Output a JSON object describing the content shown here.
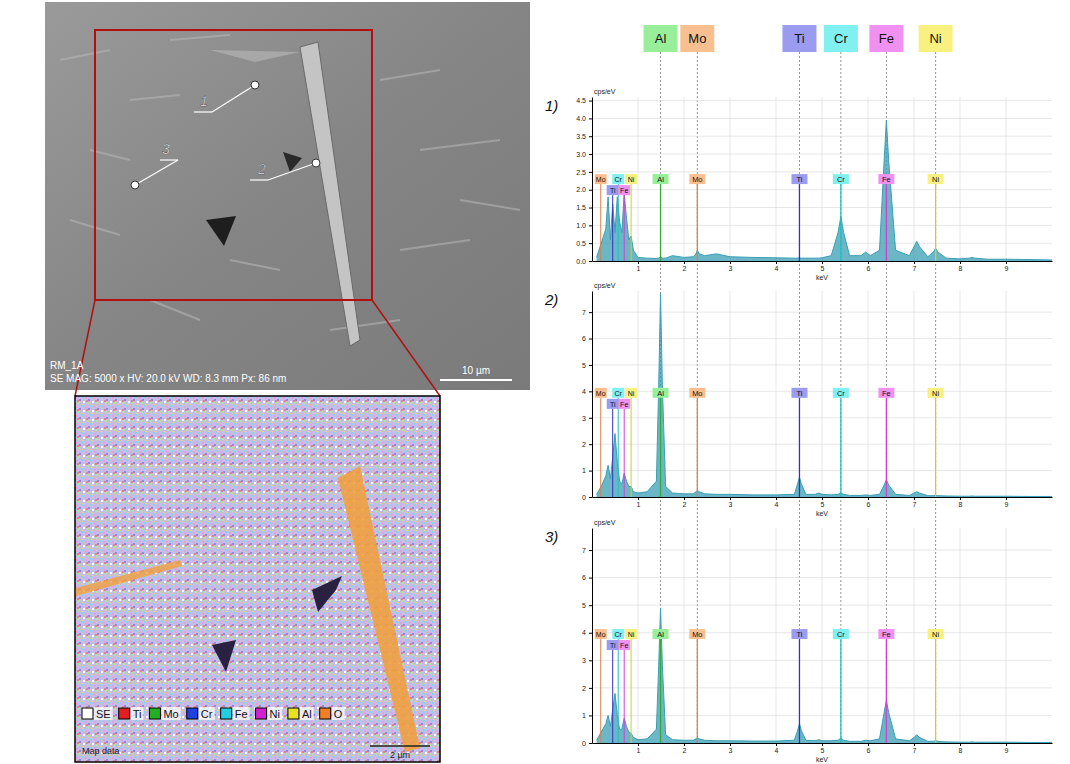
{
  "sem_image": {
    "label": "RM_1A",
    "info": "SE MAG: 5000 x HV: 20.0 kV WD: 8.3 mm Px: 86 nm",
    "scale": "10 µm",
    "points": [
      {
        "label": "1"
      },
      {
        "label": "2"
      },
      {
        "label": "3"
      }
    ]
  },
  "eds_map": {
    "legend": [
      {
        "label": "SE",
        "color": "#ffffff"
      },
      {
        "label": "Ti",
        "color": "#e02020"
      },
      {
        "label": "Mo",
        "color": "#20b020"
      },
      {
        "label": "Cr",
        "color": "#2040e0"
      },
      {
        "label": "Fe",
        "color": "#20d0e0"
      },
      {
        "label": "Ni",
        "color": "#d020d0"
      },
      {
        "label": "Al",
        "color": "#e8e020"
      },
      {
        "label": "O",
        "color": "#f08020"
      }
    ],
    "caption": "Map data",
    "scale": "2 µm"
  },
  "elements": [
    {
      "label": "Al",
      "energy": 1.49,
      "color": "#99ee99",
      "line_color": "#33aa33"
    },
    {
      "label": "Mo",
      "energy": 2.29,
      "l_energy": 0.19,
      "color": "#f8c090",
      "line_color": "#e08040"
    },
    {
      "label": "Ti",
      "energy": 4.51,
      "l_energy": 0.45,
      "color": "#9b9bf0",
      "line_color": "#3333bb"
    },
    {
      "label": "Cr",
      "energy": 5.41,
      "l_energy": 0.57,
      "color": "#80f0f0",
      "line_color": "#20c0c0"
    },
    {
      "label": "Fe",
      "energy": 6.4,
      "l_energy": 0.7,
      "color": "#f090f0",
      "line_color": "#d040d0"
    },
    {
      "label": "Ni",
      "energy": 7.47,
      "l_energy": 0.85,
      "color": "#f8f080",
      "line_color": "#d0d020"
    }
  ],
  "chart_data": [
    {
      "type": "area",
      "title": "1)",
      "x_label": "keV",
      "y_label": "cps/eV",
      "color": "#3a9fb5",
      "grid": true,
      "x": [
        0.1,
        0.2,
        0.3,
        0.35,
        0.4,
        0.45,
        0.5,
        0.55,
        0.6,
        0.65,
        0.7,
        0.75,
        0.8,
        0.85,
        0.9,
        1.0,
        1.2,
        1.4,
        1.45,
        1.49,
        1.53,
        1.6,
        1.75,
        2.0,
        2.2,
        2.26,
        2.29,
        2.33,
        2.45,
        2.7,
        3.0,
        3.5,
        4.0,
        4.4,
        4.47,
        4.51,
        4.55,
        4.65,
        4.85,
        4.93,
        5.0,
        5.2,
        5.35,
        5.41,
        5.47,
        5.6,
        5.85,
        5.95,
        6.05,
        6.25,
        6.35,
        6.4,
        6.45,
        6.6,
        6.9,
        7.0,
        7.06,
        7.12,
        7.3,
        7.42,
        7.47,
        7.52,
        7.7,
        8.0,
        8.2,
        8.26,
        8.32,
        8.6,
        9.0,
        9.5,
        10.0
      ],
      "values": [
        0.1,
        0.5,
        0.9,
        1.8,
        0.6,
        1.6,
        0.8,
        1.8,
        1.1,
        0.8,
        1.9,
        1.2,
        0.6,
        0.7,
        0.3,
        0.1,
        0.08,
        0.07,
        0.08,
        0.12,
        0.08,
        0.08,
        0.15,
        0.1,
        0.12,
        0.2,
        0.3,
        0.2,
        0.15,
        0.2,
        0.12,
        0.1,
        0.09,
        0.08,
        0.08,
        0.09,
        0.08,
        0.08,
        0.08,
        0.08,
        0.09,
        0.15,
        0.8,
        1.25,
        0.8,
        0.15,
        0.15,
        0.25,
        0.15,
        0.3,
        2.8,
        3.95,
        2.8,
        0.3,
        0.15,
        0.4,
        0.55,
        0.4,
        0.12,
        0.25,
        0.35,
        0.25,
        0.08,
        0.06,
        0.08,
        0.1,
        0.08,
        0.05,
        0.05,
        0.04,
        0.03
      ],
      "xlim": [
        0,
        10
      ],
      "xticks": [
        1,
        2,
        3,
        4,
        5,
        6,
        7,
        8,
        9
      ],
      "ylim": [
        0,
        4.6
      ],
      "yticks": [
        {
          "value": 0,
          "label": "0.0"
        },
        0.5,
        {
          "value": 1,
          "label": "1.0"
        },
        1.5,
        {
          "value": 2,
          "label": "2.0"
        },
        2.5,
        {
          "value": 3,
          "label": "3.0"
        },
        3.5,
        {
          "value": 4,
          "label": "4.0"
        },
        4.5
      ]
    },
    {
      "type": "area",
      "title": "2)",
      "x_label": "keV",
      "y_label": "cps/eV",
      "color": "#3a9fb5",
      "grid": true,
      "x": [
        0.1,
        0.2,
        0.3,
        0.35,
        0.4,
        0.45,
        0.5,
        0.55,
        0.6,
        0.65,
        0.7,
        0.75,
        0.8,
        0.85,
        0.9,
        1.0,
        1.2,
        1.4,
        1.45,
        1.49,
        1.53,
        1.6,
        1.75,
        2.0,
        2.2,
        2.26,
        2.29,
        2.33,
        2.45,
        2.7,
        3.0,
        3.5,
        4.0,
        4.4,
        4.47,
        4.51,
        4.55,
        4.65,
        4.85,
        4.93,
        5.0,
        5.2,
        5.35,
        5.41,
        5.47,
        5.6,
        5.85,
        5.95,
        6.05,
        6.25,
        6.35,
        6.4,
        6.45,
        6.6,
        6.9,
        7.0,
        7.06,
        7.12,
        7.3,
        7.42,
        7.47,
        7.52,
        7.7,
        8.0,
        8.2,
        8.26,
        8.32,
        8.6,
        9.0,
        9.5,
        10.0
      ],
      "values": [
        0.1,
        0.4,
        0.8,
        1.2,
        0.7,
        1.5,
        2.4,
        1.3,
        0.6,
        0.5,
        0.9,
        0.6,
        0.4,
        0.4,
        0.2,
        0.15,
        0.2,
        0.6,
        4.2,
        7.7,
        4.2,
        0.4,
        0.15,
        0.12,
        0.12,
        0.2,
        0.25,
        0.2,
        0.12,
        0.1,
        0.1,
        0.08,
        0.08,
        0.1,
        0.5,
        0.75,
        0.5,
        0.1,
        0.1,
        0.15,
        0.1,
        0.08,
        0.1,
        0.15,
        0.1,
        0.06,
        0.06,
        0.08,
        0.06,
        0.1,
        0.45,
        0.65,
        0.45,
        0.1,
        0.06,
        0.15,
        0.2,
        0.15,
        0.05,
        0.05,
        0.06,
        0.05,
        0.04,
        0.03,
        0.03,
        0.04,
        0.03,
        0.03,
        0.03,
        0.02,
        0.02
      ],
      "xlim": [
        0,
        10
      ],
      "xticks": [
        1,
        2,
        3,
        4,
        5,
        6,
        7,
        8,
        9
      ],
      "ylim": [
        0,
        7.8
      ],
      "yticks": [
        0,
        1,
        2,
        3,
        4,
        5,
        6,
        7
      ]
    },
    {
      "type": "area",
      "title": "3)",
      "x_label": "keV",
      "y_label": "cps/eV",
      "color": "#3a9fb5",
      "grid": true,
      "x": [
        0.1,
        0.2,
        0.3,
        0.35,
        0.4,
        0.45,
        0.5,
        0.55,
        0.6,
        0.65,
        0.7,
        0.75,
        0.8,
        0.85,
        0.9,
        1.0,
        1.2,
        1.4,
        1.45,
        1.49,
        1.53,
        1.6,
        1.75,
        2.0,
        2.2,
        2.26,
        2.29,
        2.33,
        2.45,
        2.7,
        3.0,
        3.5,
        4.0,
        4.4,
        4.47,
        4.51,
        4.55,
        4.65,
        4.85,
        4.93,
        5.0,
        5.2,
        5.35,
        5.41,
        5.47,
        5.6,
        5.85,
        5.95,
        6.05,
        6.25,
        6.35,
        6.4,
        6.45,
        6.6,
        6.9,
        7.0,
        7.06,
        7.12,
        7.3,
        7.42,
        7.47,
        7.52,
        7.7,
        8.0,
        8.2,
        8.26,
        8.32,
        8.6,
        9.0,
        9.5,
        10.0
      ],
      "values": [
        0.1,
        0.4,
        0.7,
        1.0,
        0.6,
        1.2,
        1.8,
        1.0,
        0.5,
        0.5,
        0.9,
        0.6,
        0.4,
        0.35,
        0.2,
        0.12,
        0.15,
        0.5,
        2.8,
        4.9,
        2.8,
        0.3,
        0.12,
        0.1,
        0.1,
        0.15,
        0.2,
        0.15,
        0.1,
        0.08,
        0.08,
        0.07,
        0.07,
        0.1,
        0.45,
        0.7,
        0.45,
        0.1,
        0.08,
        0.12,
        0.08,
        0.08,
        0.1,
        0.18,
        0.1,
        0.06,
        0.06,
        0.1,
        0.08,
        0.15,
        1.1,
        1.55,
        1.1,
        0.15,
        0.08,
        0.2,
        0.3,
        0.2,
        0.06,
        0.06,
        0.08,
        0.06,
        0.04,
        0.03,
        0.03,
        0.04,
        0.03,
        0.03,
        0.03,
        0.02,
        0.02
      ],
      "xlim": [
        0,
        10
      ],
      "xticks": [
        1,
        2,
        3,
        4,
        5,
        6,
        7,
        8,
        9
      ],
      "ylim": [
        0,
        7.8
      ],
      "yticks": [
        0,
        1,
        2,
        3,
        4,
        5,
        6,
        7
      ]
    }
  ]
}
